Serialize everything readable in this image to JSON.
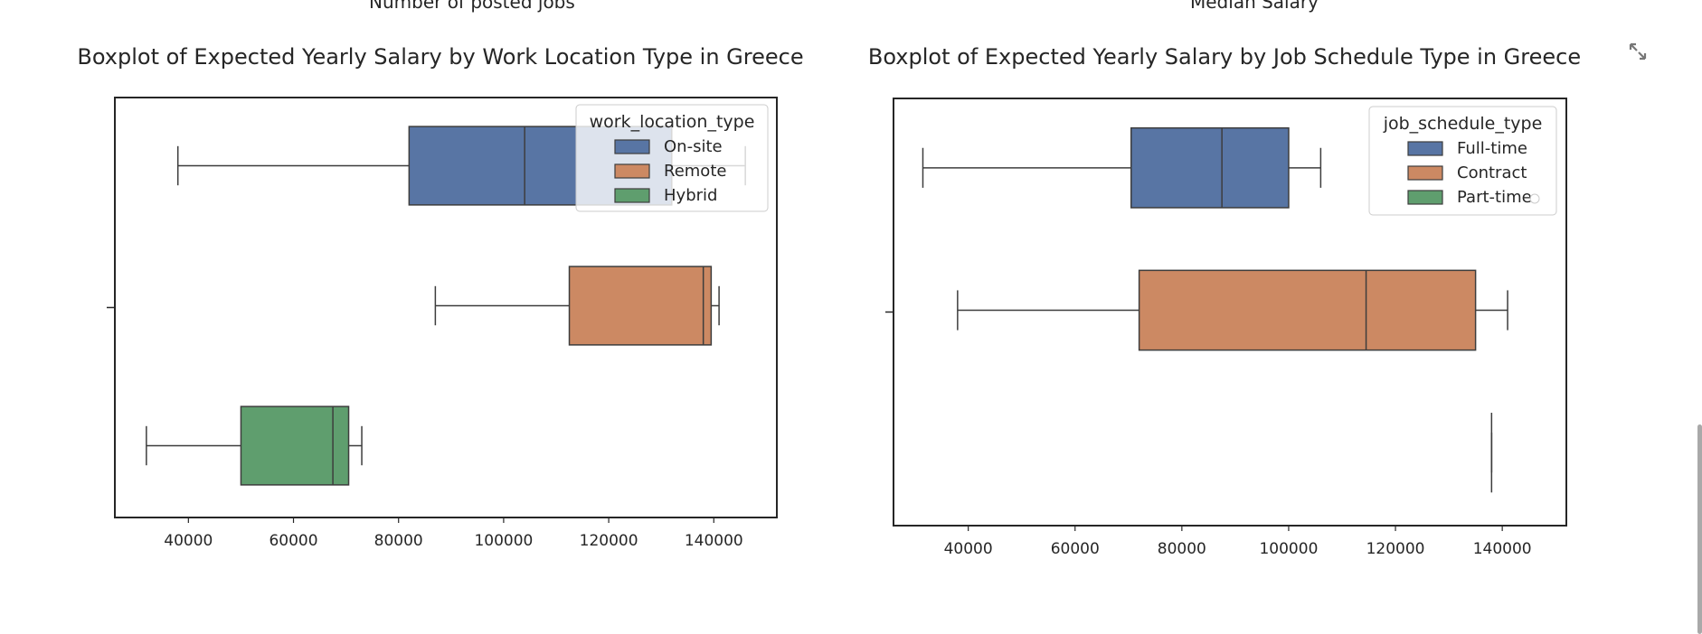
{
  "top_cut_titles": [
    "Number of posted jobs",
    "Median Salary"
  ],
  "colors": {
    "blue": "#5875a4",
    "orange": "#cc8963",
    "green": "#5f9e6e",
    "line": "#3d3d3d",
    "frame": "#262626"
  },
  "icons": {
    "expand": "expand-arrows-icon"
  },
  "chart_data": [
    {
      "type": "boxplot",
      "orientation": "horizontal",
      "title": "Boxplot of Expected Yearly Salary by Work Location Type in Greece",
      "xlabel": "",
      "ylabel": "",
      "xlim": [
        26000,
        152000
      ],
      "xticks": [
        40000,
        60000,
        80000,
        100000,
        120000,
        140000
      ],
      "xtick_labels": [
        "40000",
        "60000",
        "80000",
        "100000",
        "120000",
        "140000"
      ],
      "grid": false,
      "legend_title": "work_location_type",
      "legend_position": "upper right",
      "series": [
        {
          "name": "On-site",
          "color": "#5875a4",
          "whisker_low": 38000,
          "q1": 82000,
          "median": 104000,
          "q3": 132000,
          "whisker_high": 146000
        },
        {
          "name": "Remote",
          "color": "#cc8963",
          "whisker_low": 87000,
          "q1": 112500,
          "median": 138000,
          "q3": 139500,
          "whisker_high": 141000
        },
        {
          "name": "Hybrid",
          "color": "#5f9e6e",
          "whisker_low": 32000,
          "q1": 50000,
          "median": 67500,
          "q3": 70500,
          "whisker_high": 73000
        }
      ]
    },
    {
      "type": "boxplot",
      "orientation": "horizontal",
      "title": "Boxplot of Expected Yearly Salary by Job Schedule Type in Greece",
      "xlabel": "",
      "ylabel": "",
      "xlim": [
        26000,
        152000
      ],
      "xticks": [
        40000,
        60000,
        80000,
        100000,
        120000,
        140000
      ],
      "xtick_labels": [
        "40000",
        "60000",
        "80000",
        "100000",
        "120000",
        "140000"
      ],
      "grid": false,
      "legend_title": "job_schedule_type",
      "legend_position": "upper right",
      "series": [
        {
          "name": "Full-time",
          "color": "#5875a4",
          "whisker_low": 31500,
          "q1": 70500,
          "median": 87500,
          "q3": 100000,
          "whisker_high": 106000
        },
        {
          "name": "Contract",
          "color": "#cc8963",
          "whisker_low": 38000,
          "q1": 72000,
          "median": 114500,
          "q3": 135000,
          "whisker_high": 141000
        },
        {
          "name": "Part-time",
          "color": "#5f9e6e",
          "whisker_low": 138000,
          "q1": 138000,
          "median": 138000,
          "q3": 138000,
          "whisker_high": 138000
        }
      ]
    }
  ]
}
